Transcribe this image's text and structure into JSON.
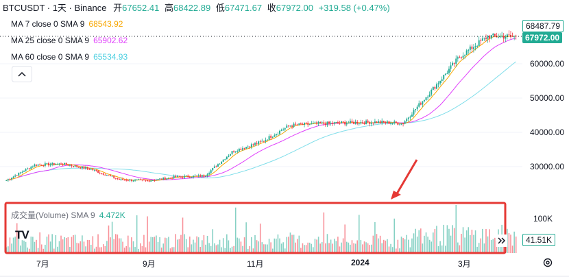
{
  "header": {
    "symbol": "BTCUSDT · 1天 · Binance",
    "open_label": "开",
    "open": "67652.41",
    "high_label": "高",
    "high": "68422.89",
    "low_label": "低",
    "low": "67471.67",
    "close_label": "收",
    "close": "67972.00",
    "change": "+319.58 (+0.47%)"
  },
  "indicators": [
    {
      "label": "MA 7 close 0 SMA 9",
      "value": "68543.92",
      "color": "#f7a600"
    },
    {
      "label": "MA 25 close 0 SMA 9",
      "value": "65902.62",
      "color": "#e040fb"
    },
    {
      "label": "MA 60 close 0 SMA 9",
      "value": "65534.93",
      "color": "#80deea"
    }
  ],
  "collapse_icon": "chevron-up-icon",
  "volume_legend": {
    "label": "成交量(Volume) SMA 9",
    "value": "4.472K"
  },
  "price_axis": {
    "ticks": [
      "60000.00",
      "50000.00",
      "40000.00",
      "30000.00"
    ],
    "tags": [
      {
        "text": "68487.79",
        "style": "outline"
      },
      {
        "text": "67972.00",
        "style": "filled"
      }
    ]
  },
  "volume_axis": {
    "tick": "100K",
    "tag": "41.51K"
  },
  "time_axis": {
    "labels": [
      "7月",
      "9月",
      "11月",
      "2024",
      "3月"
    ]
  },
  "logo_text": "TV",
  "scroll_icon": "double-chevron-right-icon",
  "settings_icon": "gear-icon",
  "colors": {
    "up": "#22ab94",
    "down": "#f23645",
    "highlight": "#e53935",
    "arrow": "#e53935"
  },
  "chart_data": {
    "type": "candlestick",
    "title": "BTCUSDT · 1天 · Binance",
    "ylim": [
      24500,
      70000
    ],
    "x_labels": [
      "7月",
      "9月",
      "11月",
      "2024",
      "3月"
    ],
    "grid": true,
    "approximate_close_path": [
      {
        "month": "2023-06 mid",
        "close": 26000
      },
      {
        "month": "2023-07 start",
        "close": 30500
      },
      {
        "month": "2023-07 mid",
        "close": 30800
      },
      {
        "month": "2023-08 start",
        "close": 29200
      },
      {
        "month": "2023-08 mid",
        "close": 26200
      },
      {
        "month": "2023-09 start",
        "close": 25900
      },
      {
        "month": "2023-09 end",
        "close": 27000
      },
      {
        "month": "2023-10 mid",
        "close": 27300
      },
      {
        "month": "2023-10 end",
        "close": 34500
      },
      {
        "month": "2023-11 mid",
        "close": 37200
      },
      {
        "month": "2023-12 start",
        "close": 42000
      },
      {
        "month": "2023-12 end",
        "close": 42500
      },
      {
        "month": "2024-01 mid",
        "close": 42800
      },
      {
        "month": "2024-01 end",
        "close": 43000
      },
      {
        "month": "2024-02 start",
        "close": 42600
      },
      {
        "month": "2024-02 mid",
        "close": 52000
      },
      {
        "month": "2024-03 start",
        "close": 62000
      },
      {
        "month": "2024-03 mid",
        "close": 68000
      },
      {
        "month": "2024-03 end",
        "close": 67972
      }
    ]
  }
}
